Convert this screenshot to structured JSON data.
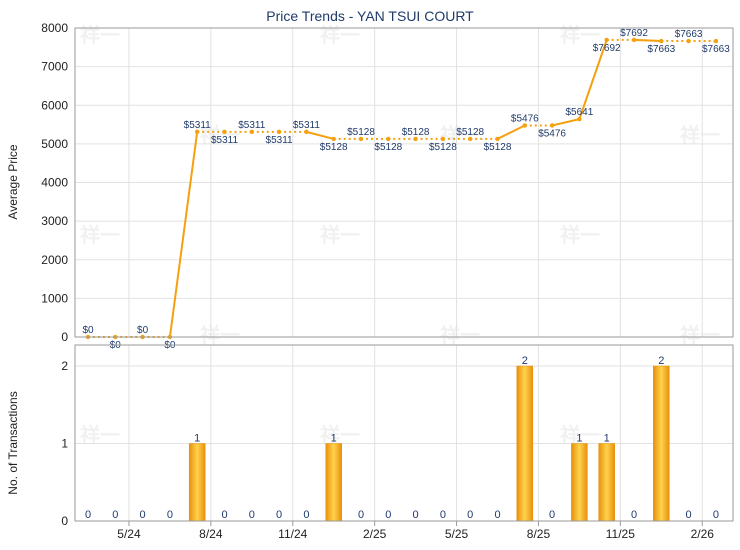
{
  "chart_data": [
    {
      "type": "line",
      "title": "Price Trends - YAN TSUI COURT",
      "ylabel": "Average Price",
      "ylim": [
        0,
        8000
      ],
      "yticks": [
        0,
        1000,
        2000,
        3000,
        4000,
        5000,
        6000,
        7000,
        8000
      ],
      "grid": true,
      "color": "#f5a00f",
      "series": [
        {
          "values": [
            0,
            0,
            0,
            0,
            5311,
            5311,
            5311,
            5311,
            5311,
            5128,
            5128,
            5128,
            5128,
            5128,
            5128,
            5128,
            5476,
            5476,
            5641,
            7692,
            7692,
            7663,
            7663,
            7663
          ],
          "labels": [
            "$0",
            "$0",
            "$0",
            "$0",
            "$5311",
            "$5311",
            "$5311",
            "$5311",
            "$5311",
            "$5128",
            "$5128",
            "$5128",
            "$5128",
            "$5128",
            "$5128",
            "$5128",
            "$5476",
            "$5476",
            "$5641",
            "$7692",
            "$7692",
            "$7663",
            "$7663",
            "$7663"
          ]
        }
      ]
    },
    {
      "type": "bar",
      "ylabel": "No. of Transactions",
      "ylim": [
        0,
        2
      ],
      "yticks": [
        0,
        1,
        2
      ],
      "grid": true,
      "color": "#f5a00f",
      "categories": [
        "",
        "",
        "5/24",
        "",
        "",
        "8/24",
        "",
        "",
        "11/24",
        "",
        "",
        "2/25",
        "",
        "",
        "5/25",
        "",
        "",
        "8/25",
        "",
        "",
        "11/25",
        "",
        "",
        "2/26"
      ],
      "values": [
        0,
        0,
        0,
        0,
        1,
        0,
        0,
        0,
        0,
        1,
        0,
        0,
        0,
        0,
        0,
        0,
        2,
        0,
        1,
        1,
        0,
        2,
        0,
        0
      ]
    }
  ],
  "watermark": "祥一"
}
